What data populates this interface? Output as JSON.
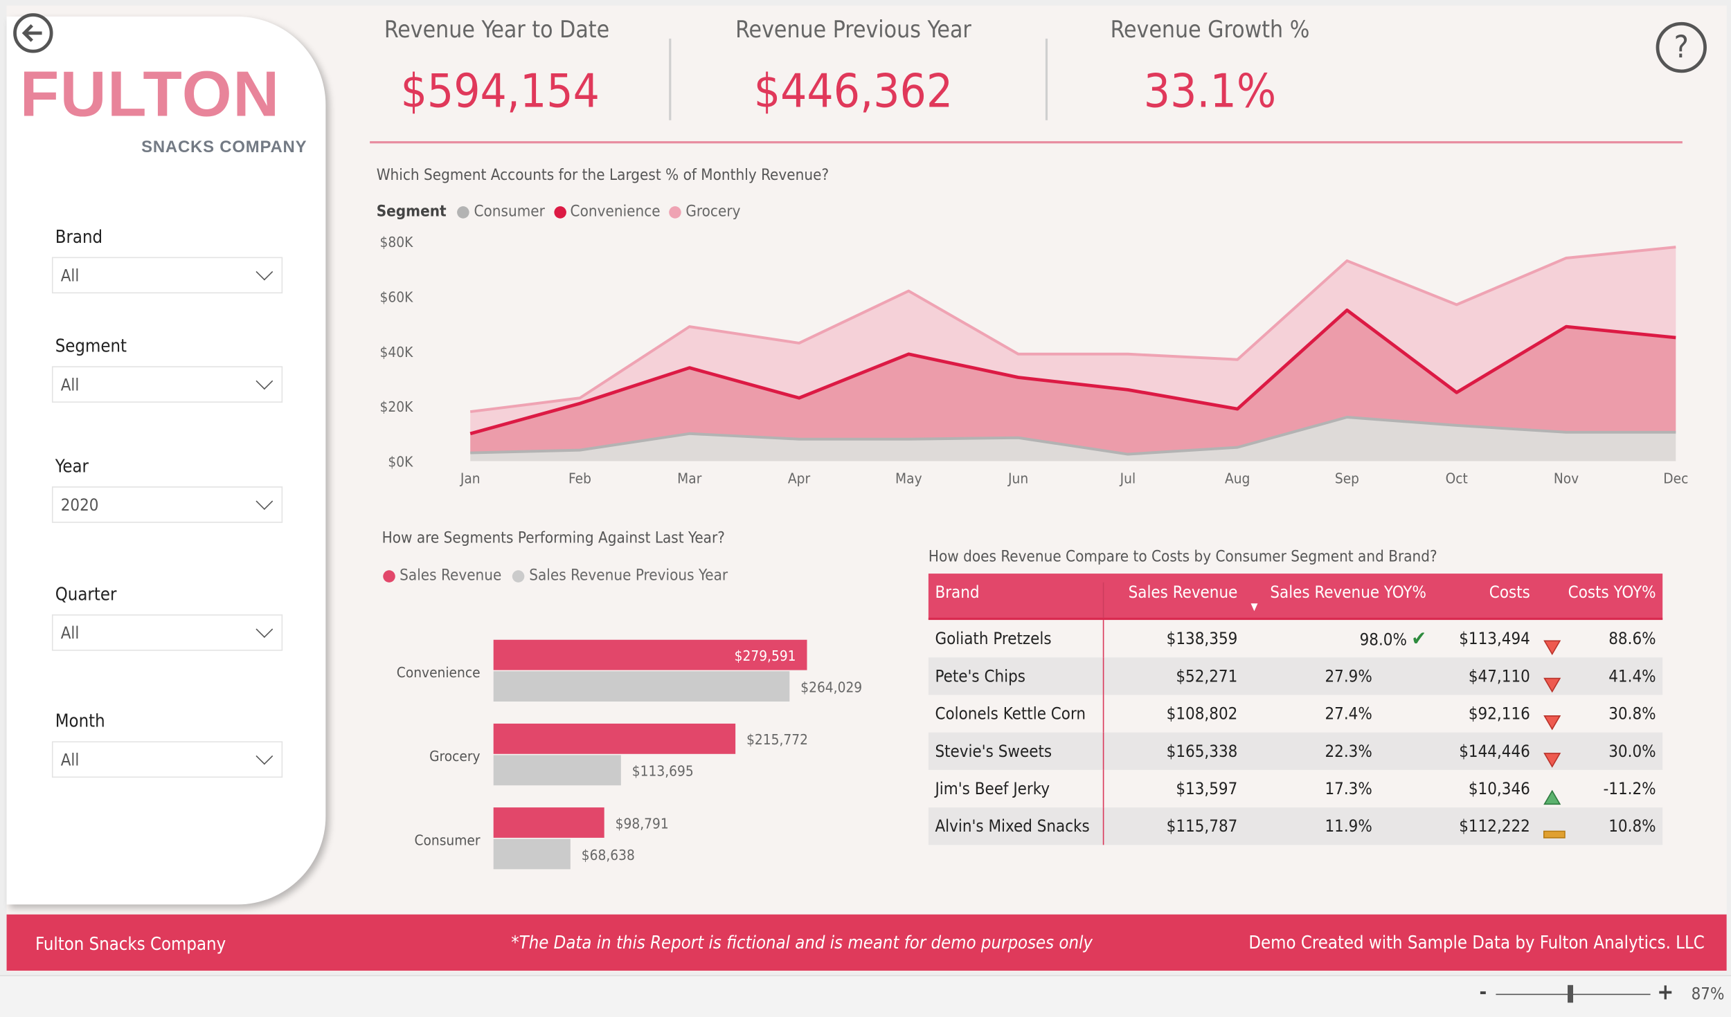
{
  "nav": {
    "back_icon": "arrow-left-circle-icon",
    "help_icon": "question-circle-icon"
  },
  "logo": {
    "main": "FULTON",
    "sub": "SNACKS COMPANY"
  },
  "slicers": [
    {
      "label": "Brand",
      "value": "All"
    },
    {
      "label": "Segment",
      "value": "All"
    },
    {
      "label": "Year",
      "value": "2020"
    },
    {
      "label": "Quarter",
      "value": "All"
    },
    {
      "label": "Month",
      "value": "All"
    }
  ],
  "kpis": [
    {
      "title": "Revenue Year to Date",
      "value": "$594,154"
    },
    {
      "title": "Revenue Previous Year",
      "value": "$446,362"
    },
    {
      "title": "Revenue Growth %",
      "value": "33.1%"
    }
  ],
  "colors": {
    "accent": "#e0385a",
    "consumer": "#b3b3b3",
    "convenience": "#dc1a44",
    "grocery": "#efa3b3",
    "footer": "#df3a5b",
    "prev_year": "#cbcbcb",
    "sales": "#e2476a"
  },
  "chart_data": [
    {
      "type": "area",
      "stacked": true,
      "title": "Which Segment Accounts for the Largest % of Monthly Revenue?",
      "legend_title": "Segment",
      "legend_position": "top-left",
      "categories": [
        "Jan",
        "Feb",
        "Mar",
        "Apr",
        "May",
        "Jun",
        "Jul",
        "Aug",
        "Sep",
        "Oct",
        "Nov",
        "Dec"
      ],
      "yticks": [
        "$0K",
        "$20K",
        "$40K",
        "$60K",
        "$80K"
      ],
      "ylim": [
        0,
        80000
      ],
      "grid": false,
      "series": [
        {
          "name": "Consumer",
          "values": [
            3000,
            4000,
            10000,
            8000,
            8000,
            8500,
            2500,
            5000,
            16000,
            13000,
            10500,
            10500
          ]
        },
        {
          "name": "Convenience",
          "values": [
            7000,
            17000,
            24000,
            15000,
            31000,
            22000,
            23500,
            14000,
            39000,
            12000,
            38500,
            34500
          ]
        },
        {
          "name": "Grocery",
          "values": [
            8000,
            2000,
            15000,
            20000,
            23000,
            8500,
            13000,
            18000,
            18000,
            32000,
            25000,
            33000
          ]
        }
      ]
    },
    {
      "type": "bar",
      "orientation": "horizontal",
      "title": "How are Segments Performing Against Last Year?",
      "legend_position": "top-left",
      "categories": [
        "Convenience",
        "Grocery",
        "Consumer"
      ],
      "series": [
        {
          "name": "Sales Revenue",
          "values": [
            279591,
            215772,
            98791
          ],
          "labels": [
            "$279,591",
            "$215,772",
            "$98,791"
          ]
        },
        {
          "name": "Sales Revenue Previous Year",
          "values": [
            264029,
            113695,
            68638
          ],
          "labels": [
            "$264,029",
            "$113,695",
            "$68,638"
          ]
        }
      ]
    }
  ],
  "table": {
    "title": "How does Revenue Compare to Costs by Consumer Segment and Brand?",
    "headers": [
      "Brand",
      "Sales Revenue",
      "Sales Revenue YOY%",
      "Costs",
      "Costs YOY%"
    ],
    "sort_icon": "sort-descending-icon",
    "rows": [
      {
        "brand": "Goliath Pretzels",
        "rev": "$138,359",
        "rev_yoy": "98.0%",
        "rev_icon": "check",
        "costs": "$113,494",
        "cost_icon": "down-red",
        "cost_yoy": "88.6%"
      },
      {
        "brand": "Pete's Chips",
        "rev": "$52,271",
        "rev_yoy": "27.9%",
        "rev_icon": "",
        "costs": "$47,110",
        "cost_icon": "down-red",
        "cost_yoy": "41.4%"
      },
      {
        "brand": "Colonels Kettle Corn",
        "rev": "$108,802",
        "rev_yoy": "27.4%",
        "rev_icon": "",
        "costs": "$92,116",
        "cost_icon": "down-red",
        "cost_yoy": "30.8%"
      },
      {
        "brand": "Stevie's Sweets",
        "rev": "$165,338",
        "rev_yoy": "22.3%",
        "rev_icon": "",
        "costs": "$144,446",
        "cost_icon": "down-red",
        "cost_yoy": "30.0%"
      },
      {
        "brand": "Jim's Beef Jerky",
        "rev": "$13,597",
        "rev_yoy": "17.3%",
        "rev_icon": "",
        "costs": "$10,346",
        "cost_icon": "up-green",
        "cost_yoy": "-11.2%"
      },
      {
        "brand": "Alvin's Mixed Snacks",
        "rev": "$115,787",
        "rev_yoy": "11.9%",
        "rev_icon": "",
        "costs": "$112,222",
        "cost_icon": "flat-amber",
        "cost_yoy": "10.8%"
      }
    ]
  },
  "footer": {
    "left": "Fulton Snacks Company",
    "center": "*The Data in this Report is fictional and is meant for demo purposes only",
    "right": "Demo Created with Sample Data by Fulton Analytics. LLC"
  },
  "status": {
    "zoom_minus": "-",
    "zoom_plus": "+",
    "zoom": "87%",
    "zoom_level": 0.87
  }
}
